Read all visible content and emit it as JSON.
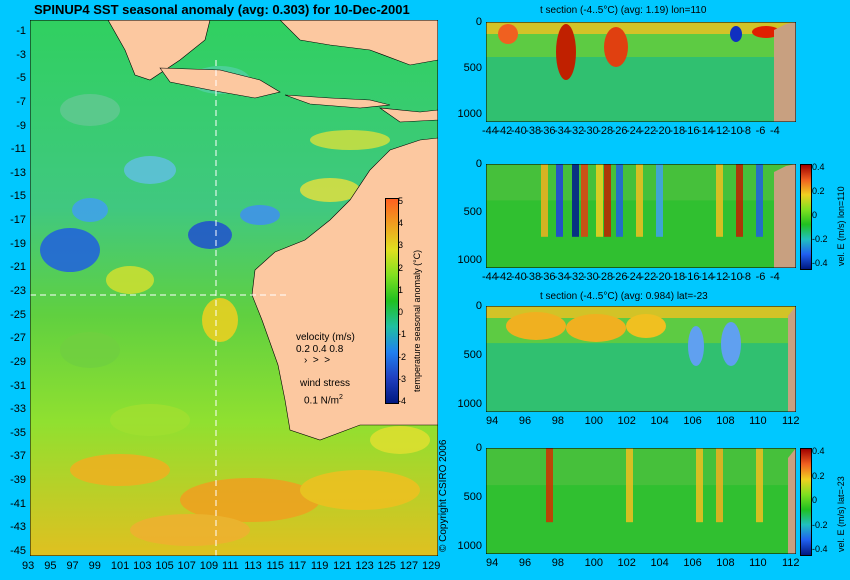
{
  "main_title": "SPINUP4 SST seasonal anomaly (avg: 0.303) for 10-Dec-2001",
  "map": {
    "lat_ticks": [
      "-1",
      "-3",
      "-5",
      "-7",
      "-9",
      "-11",
      "-13",
      "-15",
      "-17",
      "-19",
      "-21",
      "-23",
      "-25",
      "-27",
      "-29",
      "-31",
      "-33",
      "-35",
      "-37",
      "-39",
      "-41",
      "-43",
      "-45"
    ],
    "lon_ticks": [
      "93",
      "95",
      "97",
      "99",
      "101",
      "103",
      "105",
      "107",
      "109",
      "111",
      "113",
      "115",
      "117",
      "119",
      "121",
      "123",
      "125",
      "127",
      "129"
    ],
    "colorbar_label": "temperature seasonal anomaly (°C)",
    "colorbar_ticks": [
      "5",
      "4",
      "3",
      "2",
      "1",
      "0",
      "-1",
      "-2",
      "-3",
      "-4"
    ],
    "velocity_label": "velocity (m/s)",
    "velocity_scale": "0.2 0.4 0.8",
    "wind_label": "wind stress",
    "wind_scale": "0.1 N/m",
    "wind_scale_sup": "2",
    "copyright": "© Copyright CSIRO 2006"
  },
  "panels": [
    {
      "title": "t section (-4..5°C) (avg: 1.19) lon=110",
      "x_ticks": [
        "-44",
        "-42",
        "-40",
        "-38",
        "-36",
        "-34",
        "-32",
        "-30",
        "-28",
        "-26",
        "-24",
        "-22",
        "-20",
        "-18",
        "-16",
        "-14",
        "-12",
        "-10",
        "-8",
        "-6",
        "-4"
      ],
      "y_ticks": [
        "0",
        "500",
        "1000"
      ]
    },
    {
      "title": "",
      "x_ticks": [
        "-44",
        "-42",
        "-40",
        "-38",
        "-36",
        "-34",
        "-32",
        "-30",
        "-28",
        "-26",
        "-24",
        "-22",
        "-20",
        "-18",
        "-16",
        "-14",
        "-12",
        "-10",
        "-8",
        "-6",
        "-4"
      ],
      "y_ticks": [
        "0",
        "500",
        "1000"
      ],
      "colorbar_ticks": [
        "0.4",
        "0.2",
        "0",
        "-0.2",
        "-0.4"
      ],
      "colorbar_label": "vel. E (m/s) lon=110"
    },
    {
      "title": "t section (-4..5°C) (avg: 0.984) lat=-23",
      "x_ticks": [
        "94",
        "96",
        "98",
        "100",
        "102",
        "104",
        "106",
        "108",
        "110",
        "112"
      ],
      "y_ticks": [
        "0",
        "500",
        "1000"
      ]
    },
    {
      "title": "",
      "x_ticks": [
        "94",
        "96",
        "98",
        "100",
        "102",
        "104",
        "106",
        "108",
        "110",
        "112"
      ],
      "y_ticks": [
        "0",
        "500",
        "1000"
      ],
      "colorbar_ticks": [
        "0.4",
        "0.2",
        "0",
        "-0.2",
        "-0.4"
      ],
      "colorbar_label": "vel. E (m/s) lat=-23"
    }
  ],
  "colors": {
    "background": "#00c8ff",
    "land": "#fcc8a0",
    "section_land": "#c8a080"
  }
}
